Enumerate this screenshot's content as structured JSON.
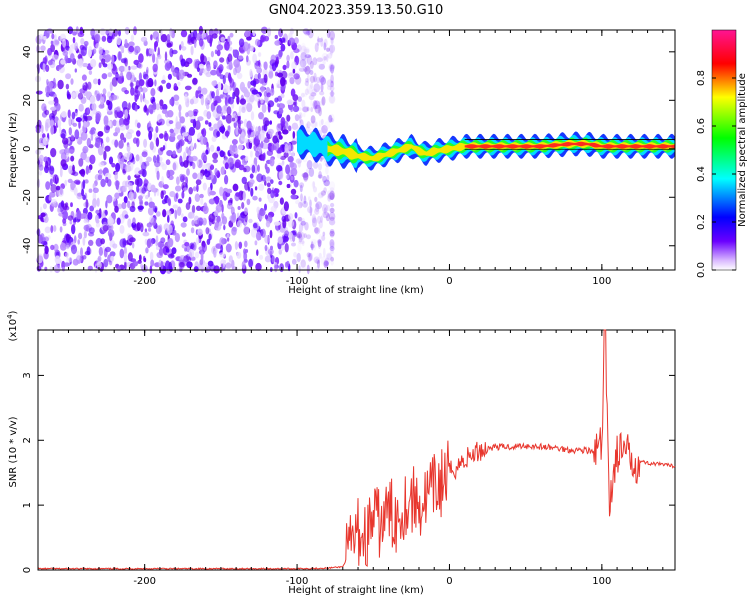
{
  "title": "GN04.2023.359.13.50.G10",
  "chart_data": [
    {
      "type": "heatmap",
      "xlabel": "Height of straight line (km)",
      "ylabel": "Frequency (Hz)",
      "xlim": [
        -270,
        148
      ],
      "ylim": [
        -50,
        49
      ],
      "xticks": [
        -200,
        -100,
        0,
        100
      ],
      "yticks": [
        -40,
        -20,
        0,
        20,
        40
      ],
      "colorbar": {
        "label": "Normalized spectral amplitude",
        "range": [
          0,
          1
        ],
        "ticks": [
          "0.0",
          "0.2",
          "0.4",
          "0.6",
          "0.8"
        ],
        "colors": [
          "#ffffff",
          "#6a00ff",
          "#0000ff",
          "#00ffff",
          "#00ff00",
          "#ffff00",
          "#ff0000",
          "#ff1493"
        ]
      },
      "features": {
        "noise_region_x": [
          -270,
          -85
        ],
        "signal_band_x": [
          -100,
          148
        ],
        "signal_center_hz": [
          [
            -100,
            3
          ],
          [
            -90,
            2
          ],
          [
            -80,
            0
          ],
          [
            -70,
            -1
          ],
          [
            -60,
            -3
          ],
          [
            -50,
            -4
          ],
          [
            -40,
            -2
          ],
          [
            -30,
            0
          ],
          [
            -25,
            1
          ],
          [
            -20,
            -1
          ],
          [
            -15,
            -2
          ],
          [
            -10,
            -1
          ],
          [
            0,
            0
          ],
          [
            10,
            1
          ],
          [
            20,
            1
          ],
          [
            40,
            1
          ],
          [
            60,
            1
          ],
          [
            80,
            2
          ],
          [
            90,
            2
          ],
          [
            100,
            1
          ],
          [
            110,
            1
          ],
          [
            148,
            1
          ]
        ]
      },
      "grid": false
    },
    {
      "type": "line",
      "xlabel": "Height of straight line (km)",
      "ylabel": "SNR (10 * v/v)",
      "yscale_label": "(x10",
      "yscale_exp": "4",
      "xlim": [
        -270,
        148
      ],
      "ylim": [
        0,
        3.7
      ],
      "xticks": [
        -200,
        -100,
        0,
        100
      ],
      "yticks": [
        0,
        1,
        2,
        3
      ],
      "line_color": "#e8362d",
      "series": [
        {
          "x": [
            -270,
            -200,
            -100,
            -80,
            -70,
            -65,
            -60,
            -55,
            -50,
            -45,
            -40,
            -35,
            -30,
            -25,
            -20,
            -15,
            -10,
            -5,
            0,
            10,
            20,
            30,
            40,
            50,
            60,
            70,
            80,
            90,
            95,
            100,
            102,
            105,
            110,
            115,
            120,
            130,
            148
          ],
          "values": [
            0.02,
            0.02,
            0.02,
            0.03,
            0.05,
            0.3,
            0.6,
            0.5,
            0.8,
            0.7,
            0.9,
            0.8,
            1.0,
            1.1,
            1.0,
            1.1,
            1.25,
            1.35,
            1.5,
            1.7,
            1.85,
            1.9,
            1.9,
            1.92,
            1.9,
            1.88,
            1.85,
            1.85,
            1.8,
            1.9,
            3.7,
            1.1,
            1.8,
            1.8,
            1.7,
            1.65,
            1.6
          ]
        }
      ],
      "grid": false
    }
  ]
}
